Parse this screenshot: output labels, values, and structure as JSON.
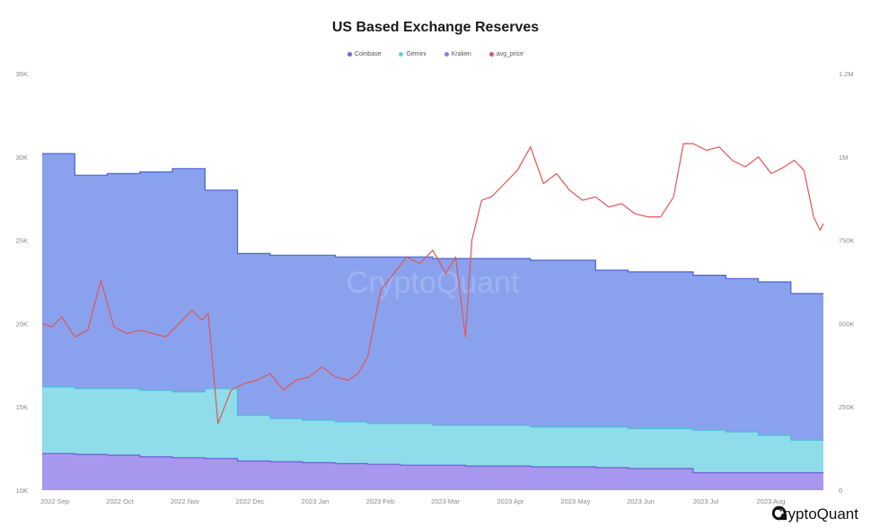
{
  "chart_data": {
    "type": "area",
    "title": "US Based Exchange Reserves",
    "watermark": "CryptoQuant",
    "brand": "CryptoQuant",
    "x_labels": [
      "2022 Sep",
      "2022 Oct",
      "2022 Nov",
      "2022 Dec",
      "2023 Jan",
      "2023 Feb",
      "2023 Mar",
      "2023 Apr",
      "2023 May",
      "2023 Jun",
      "2023 Jul",
      "2023 Aug"
    ],
    "y_left": {
      "ticks": [
        "10K",
        "15K",
        "20K",
        "25K",
        "30K",
        "35K"
      ],
      "range": [
        10000,
        35000
      ]
    },
    "y_right": {
      "ticks": [
        "0",
        "250K",
        "500K",
        "750K",
        "1M",
        "1.2M"
      ],
      "range": [
        0,
        1250000
      ]
    },
    "legend": [
      {
        "label": "Coinbase",
        "color": "#5b6fd6"
      },
      {
        "label": "Gemini",
        "color": "#5ed1e8"
      },
      {
        "label": "Kraken",
        "color": "#8a7fe0"
      },
      {
        "label": "avg_price",
        "color": "#e15555"
      }
    ],
    "x": [
      0,
      0.5,
      1.0,
      1.5,
      2.0,
      2.5,
      3.0,
      3.5,
      4.0,
      4.5,
      5.0,
      5.5,
      6.0,
      6.5,
      7.0,
      7.5,
      8.0,
      8.5,
      9.0,
      9.5,
      10.0,
      10.5,
      11.0,
      11.5
    ],
    "series": [
      {
        "name": "Kraken",
        "role": "stack_total_bottom",
        "values": [
          12200,
          12150,
          12100,
          12000,
          11950,
          11900,
          11750,
          11700,
          11650,
          11600,
          11550,
          11500,
          11500,
          11450,
          11450,
          11400,
          11400,
          11350,
          11300,
          11300,
          11050,
          11050,
          11050,
          11050
        ]
      },
      {
        "name": "Gemini",
        "role": "stack_total_middle",
        "values": [
          16200,
          16100,
          16100,
          16000,
          15900,
          16100,
          14500,
          14300,
          14200,
          14100,
          14000,
          14000,
          13900,
          13900,
          13900,
          13800,
          13800,
          13800,
          13700,
          13700,
          13600,
          13500,
          13300,
          13000
        ]
      },
      {
        "name": "Coinbase",
        "role": "stack_total_top",
        "values": [
          30200,
          28900,
          29000,
          29100,
          29300,
          28000,
          24200,
          24100,
          24100,
          24000,
          24000,
          24000,
          23900,
          23900,
          23900,
          23800,
          23800,
          23200,
          23100,
          23100,
          22900,
          22700,
          22500,
          21800
        ]
      },
      {
        "name": "avg_price",
        "axis": "right",
        "x": [
          0,
          0.15,
          0.3,
          0.5,
          0.7,
          0.9,
          1.1,
          1.3,
          1.5,
          1.7,
          1.9,
          2.1,
          2.3,
          2.45,
          2.55,
          2.7,
          2.9,
          3.1,
          3.3,
          3.5,
          3.7,
          3.9,
          4.1,
          4.3,
          4.5,
          4.7,
          4.85,
          5.0,
          5.2,
          5.4,
          5.6,
          5.8,
          6.0,
          6.2,
          6.35,
          6.5,
          6.6,
          6.75,
          6.9,
          7.1,
          7.3,
          7.5,
          7.7,
          7.9,
          8.1,
          8.3,
          8.5,
          8.7,
          8.9,
          9.1,
          9.3,
          9.5,
          9.7,
          9.85,
          10.0,
          10.2,
          10.4,
          10.6,
          10.8,
          11.0,
          11.2,
          11.4,
          11.55,
          11.7,
          11.85,
          11.95,
          12.0
        ],
        "values": [
          500000,
          490000,
          520000,
          460000,
          480000,
          630000,
          490000,
          470000,
          480000,
          470000,
          460000,
          500000,
          540000,
          510000,
          530000,
          200000,
          300000,
          320000,
          330000,
          350000,
          300000,
          330000,
          340000,
          370000,
          340000,
          330000,
          350000,
          400000,
          600000,
          650000,
          700000,
          680000,
          720000,
          650000,
          700000,
          460000,
          750000,
          870000,
          880000,
          920000,
          960000,
          1030000,
          920000,
          950000,
          900000,
          870000,
          880000,
          850000,
          860000,
          830000,
          820000,
          820000,
          880000,
          1040000,
          1040000,
          1020000,
          1030000,
          990000,
          970000,
          1000000,
          950000,
          970000,
          990000,
          960000,
          820000,
          780000,
          800000
        ]
      }
    ]
  }
}
